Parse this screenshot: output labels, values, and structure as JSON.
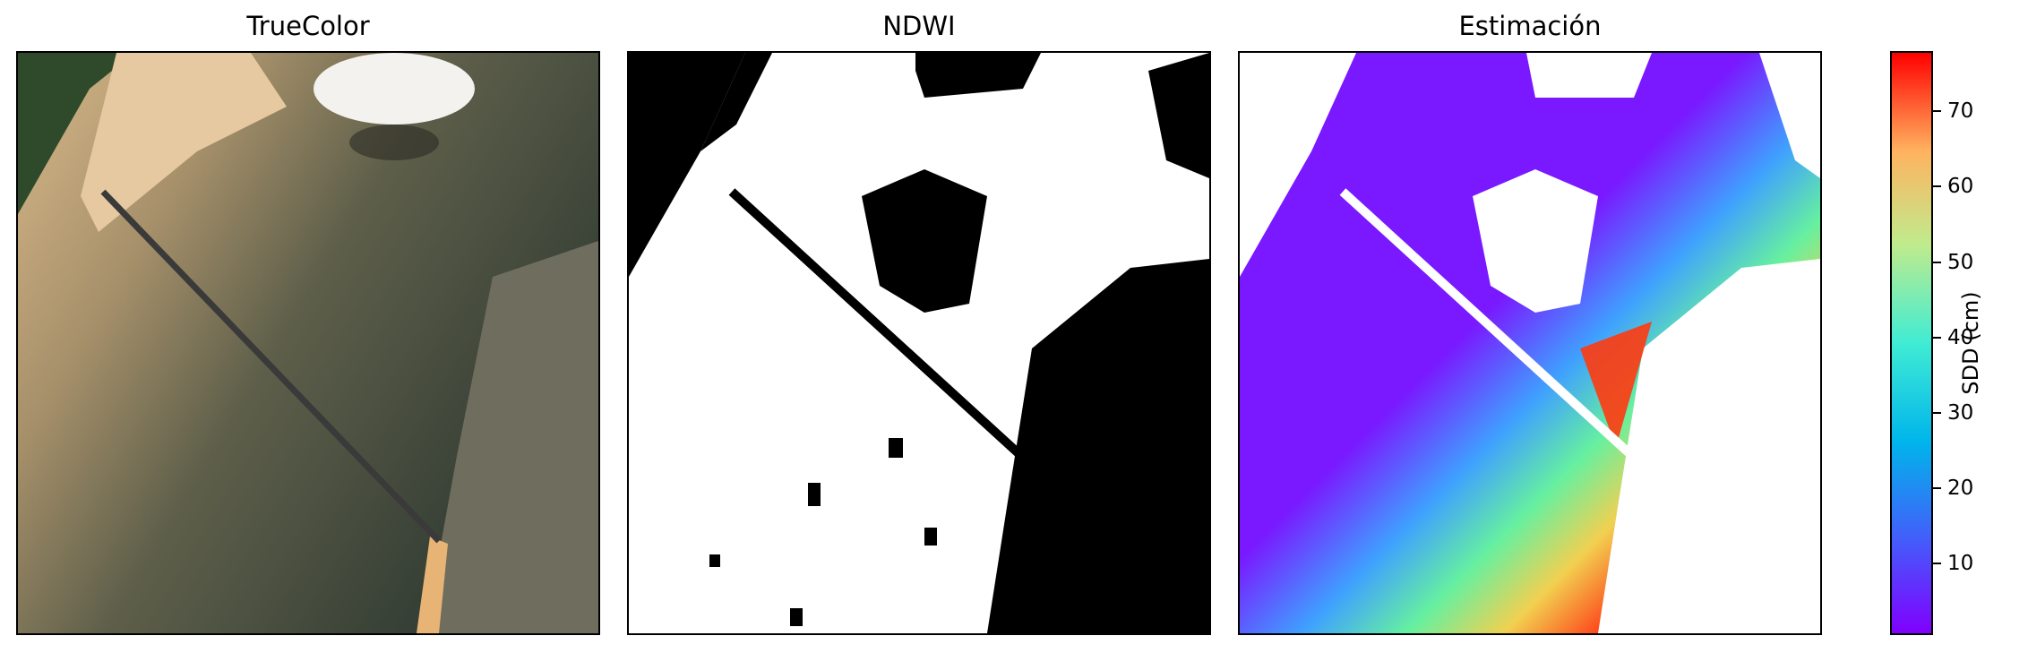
{
  "chart_data": [
    {
      "type": "heatmap",
      "title": "TrueColor",
      "xlabel": "",
      "ylabel": "",
      "axes": "off",
      "content": "RGB satellite image of a coastal area with a long pier crossing a turbid river/estuary, urban area at lower right, sandy shore at upper left"
    },
    {
      "type": "heatmap",
      "title": "NDWI",
      "xlabel": "",
      "ylabel": "",
      "axes": "off",
      "colormap": "binary (white = water, black = non-water)",
      "colors": {
        "water": "#ffffff",
        "land": "#000000"
      }
    },
    {
      "type": "heatmap",
      "title": "Estimación",
      "xlabel": "",
      "ylabel": "",
      "axes": "off",
      "colormap": "rainbow",
      "colorbar": {
        "label": "SDD (cm)",
        "range": [
          0.5,
          78
        ],
        "ticks": [
          10,
          20,
          30,
          40,
          50,
          60,
          70
        ],
        "tick_labels": [
          "10",
          "20",
          "30",
          "40",
          "50",
          "60",
          "70"
        ],
        "position": "right"
      },
      "masked_color": "#ffffff"
    }
  ]
}
